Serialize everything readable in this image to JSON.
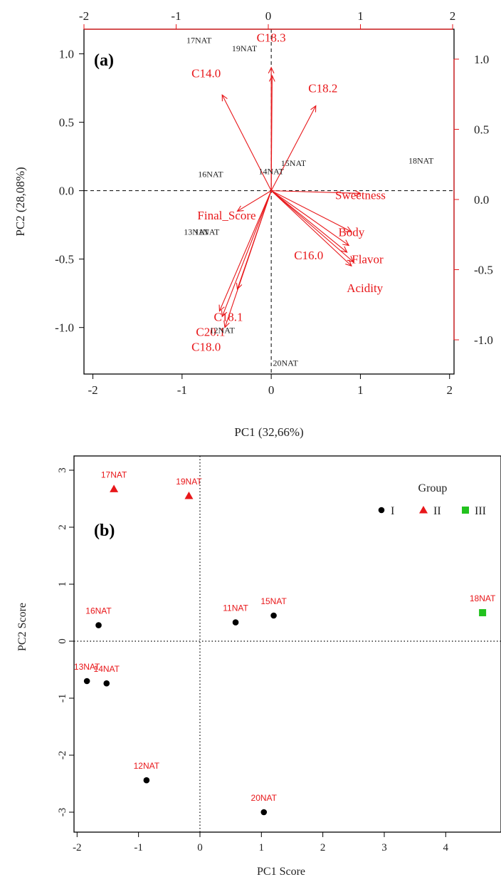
{
  "chart_data": [
    {
      "type": "biplot",
      "panel_label": "(a)",
      "xlabel": "PC1 (32,66%)",
      "ylabel": "PC2 (28,08%)",
      "xlim": [
        -2.1,
        2.05
      ],
      "ylim": [
        -1.34,
        1.18
      ],
      "bottom_ticks": [
        "-2",
        "-1",
        "0",
        "1",
        "2"
      ],
      "left_ticks": [
        "1.0",
        "0.5",
        "0.0",
        "-0.5",
        "-1.0"
      ],
      "top_ticks": [
        "-2",
        "-1",
        "0",
        "1",
        "2"
      ],
      "right_ticks": [
        "1.0",
        "0.5",
        "0.0",
        "-0.5",
        "-1.0"
      ],
      "top_tick_values": [
        -2,
        -1,
        0,
        1,
        2
      ],
      "right_tick_values": [
        1.0,
        0.5,
        0.0,
        -0.5,
        -1.0
      ],
      "samples": [
        {
          "label": "17NAT",
          "x": -0.81,
          "y": 1.1
        },
        {
          "label": "19NAT",
          "x": -0.3,
          "y": 1.04
        },
        {
          "label": "16NAT",
          "x": -0.68,
          "y": 0.12
        },
        {
          "label": "14NAT",
          "x": 0.0,
          "y": 0.14
        },
        {
          "label": "15NAT",
          "x": 0.25,
          "y": 0.2
        },
        {
          "label": "18NAT",
          "x": 1.68,
          "y": 0.22
        },
        {
          "label": "13NAT",
          "x": -0.84,
          "y": -0.3
        },
        {
          "label": "11NAT",
          "x": -0.72,
          "y": -0.3
        },
        {
          "label": "12NAT",
          "x": -0.55,
          "y": -1.02
        },
        {
          "label": "20NAT",
          "x": 0.16,
          "y": -1.26
        }
      ],
      "loadings": [
        {
          "name": "C18.3",
          "x": 0.0,
          "y": 0.9,
          "label_x": 0.0,
          "label_y": 1.12
        },
        {
          "name": "C14.0",
          "x": -0.55,
          "y": 0.7,
          "label_x": -0.73,
          "label_y": 0.86
        },
        {
          "name": "C18.2",
          "x": 0.5,
          "y": 0.62,
          "label_x": 0.58,
          "label_y": 0.75
        },
        {
          "name": "Sweetness",
          "x": 1.0,
          "y": -0.02,
          "label_x": 1.0,
          "label_y": -0.03
        },
        {
          "name": "Final_Score",
          "x": -0.38,
          "y": -0.15,
          "label_x": -0.5,
          "label_y": -0.18
        },
        {
          "name": "Body",
          "x": 0.9,
          "y": -0.3,
          "label_x": 0.9,
          "label_y": -0.3
        },
        {
          "name": "C16.0",
          "x": 0.87,
          "y": -0.4,
          "label_x": 0.42,
          "label_y": -0.47
        },
        {
          "name": "Flavor",
          "x": 0.92,
          "y": -0.52,
          "label_x": 1.08,
          "label_y": -0.5
        },
        {
          "name": "Acidity",
          "x": 0.9,
          "y": -0.55,
          "label_x": 1.05,
          "label_y": -0.71
        },
        {
          "name": "C18.1",
          "x": -0.55,
          "y": -0.92,
          "label_x": -0.48,
          "label_y": -0.92
        },
        {
          "name": "C20.1",
          "x": -0.52,
          "y": -1.0,
          "label_x": -0.68,
          "label_y": -1.03
        },
        {
          "name": "C18.0",
          "x": -0.38,
          "y": -0.72,
          "label_x": -0.73,
          "label_y": -1.14
        },
        {
          "name": "",
          "x": -0.58,
          "y": -0.88,
          "label_x": 0,
          "label_y": 0
        },
        {
          "name": "",
          "x": 0.85,
          "y": -0.45,
          "label_x": 0,
          "label_y": 0
        },
        {
          "name": "",
          "x": 0.01,
          "y": 0.84,
          "label_x": 0,
          "label_y": 0
        }
      ],
      "colors": {
        "samples": "#222222",
        "loadings": "#e8171a",
        "axes": "#000000"
      }
    },
    {
      "type": "scatter",
      "panel_label": "(b)",
      "xlabel": "PC1 Score",
      "ylabel": "PC2 Score",
      "xlim": [
        -2.05,
        4.9
      ],
      "ylim": [
        -3.35,
        3.25
      ],
      "x_ticks": [
        "-2",
        "-1",
        "0",
        "1",
        "2",
        "3",
        "4"
      ],
      "y_ticks": [
        "3",
        "2",
        "1",
        "0",
        "-1",
        "-2",
        "-3"
      ],
      "legend": {
        "title": "Group",
        "placement": "top-right",
        "entries": [
          "I",
          "II",
          "III"
        ]
      },
      "points": [
        {
          "label": "17NAT",
          "x": -1.4,
          "y": 2.67,
          "group": "II"
        },
        {
          "label": "19NAT",
          "x": -0.18,
          "y": 2.55,
          "group": "II"
        },
        {
          "label": "16NAT",
          "x": -1.65,
          "y": 0.28,
          "group": "I"
        },
        {
          "label": "11NAT",
          "x": 0.58,
          "y": 0.33,
          "group": "I"
        },
        {
          "label": "15NAT",
          "x": 1.2,
          "y": 0.45,
          "group": "I"
        },
        {
          "label": "18NAT",
          "x": 4.6,
          "y": 0.5,
          "group": "III"
        },
        {
          "label": "13NAT",
          "x": -1.84,
          "y": -0.7,
          "group": "I"
        },
        {
          "label": "14NAT",
          "x": -1.52,
          "y": -0.74,
          "group": "I"
        },
        {
          "label": "12NAT",
          "x": -0.87,
          "y": -2.44,
          "group": "I"
        },
        {
          "label": "20NAT",
          "x": 1.04,
          "y": -3.0,
          "group": "I"
        }
      ],
      "colors": {
        "I": "#000000",
        "II": "#e8171a",
        "III": "#22c21e",
        "labels": "#e8171a"
      }
    }
  ]
}
